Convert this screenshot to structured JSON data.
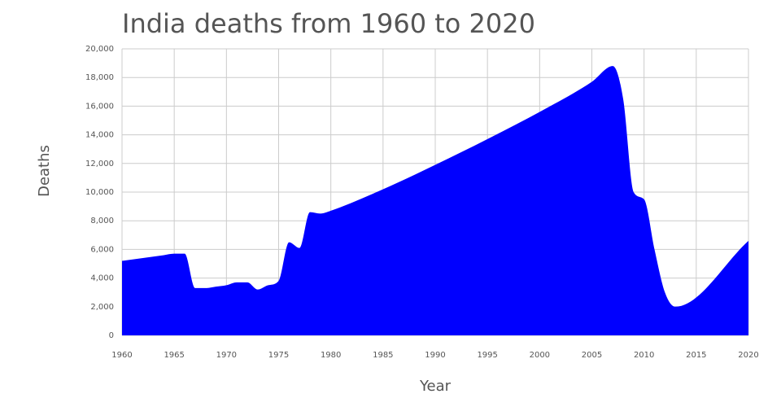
{
  "chart_data": {
    "type": "area",
    "title": "India deaths from 1960 to 2020",
    "x_label": "Year",
    "y_label": "Deaths",
    "x": [
      1960,
      1961,
      1962,
      1963,
      1964,
      1965,
      1966,
      1967,
      1968,
      1969,
      1970,
      1971,
      1972,
      1973,
      1974,
      1975,
      1976,
      1977,
      1978,
      1979,
      1980,
      1985,
      1990,
      1995,
      2000,
      2005,
      2007,
      2008,
      2009,
      2010,
      2011,
      2012,
      2013,
      2020
    ],
    "series": [
      {
        "name": "Deaths",
        "color": "#0000ff",
        "values": [
          5200,
          5300,
          5400,
          5500,
          5600,
          5700,
          5700,
          3300,
          3300,
          3400,
          3500,
          3700,
          3700,
          3200,
          3500,
          3800,
          6500,
          6100,
          8600,
          8500,
          8700,
          10200,
          11900,
          13700,
          15600,
          17700,
          18800,
          16500,
          10000,
          9500,
          6000,
          3000,
          2000,
          6600
        ]
      }
    ],
    "xlim": [
      1960,
      2020
    ],
    "xticks": [
      1960,
      1965,
      1970,
      1975,
      1980,
      1985,
      1990,
      1995,
      2000,
      2005,
      2010,
      2015,
      2020
    ],
    "ylim": [
      0,
      20000
    ],
    "yticks": [
      0,
      {
        "value": 2000,
        "label": "2,000"
      },
      {
        "value": 4000,
        "label": "4,000"
      },
      {
        "value": 6000,
        "label": "6,000"
      },
      {
        "value": 8000,
        "label": "8,000"
      },
      {
        "value": 10000,
        "label": "10,000"
      },
      {
        "value": 12000,
        "label": "12,000"
      },
      {
        "value": 14000,
        "label": "14,000"
      },
      {
        "value": 16000,
        "label": "16,000"
      },
      {
        "value": 18000,
        "label": "18,000"
      },
      {
        "value": 20000,
        "label": "20,000"
      }
    ],
    "grid": true
  }
}
